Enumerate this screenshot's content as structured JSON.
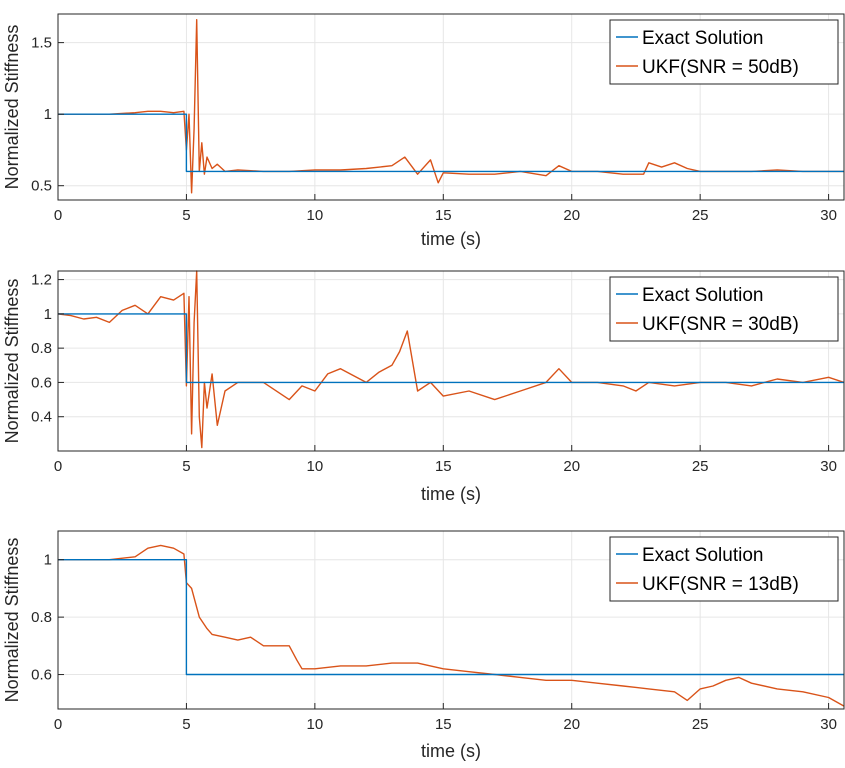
{
  "chart_data": [
    {
      "type": "line",
      "xlabel": "time (s)",
      "ylabel": "Normalized Stiffness",
      "xlim": [
        0,
        30.6
      ],
      "ylim": [
        0.4,
        1.7
      ],
      "xticks": [
        0,
        5,
        10,
        15,
        20,
        25,
        30
      ],
      "yticks": [
        0.5,
        1,
        1.5
      ],
      "xtick_labels": [
        "0",
        "5",
        "10",
        "15",
        "20",
        "25",
        "30"
      ],
      "ytick_labels": [
        "0.5",
        "1",
        "1.5"
      ],
      "legend_position": "top-right",
      "series": [
        {
          "name": "Exact Solution",
          "color": "#0072bd",
          "x": [
            0,
            5,
            5,
            30.6
          ],
          "y": [
            1,
            1,
            0.6,
            0.6
          ]
        },
        {
          "name": "UKF(SNR = 50dB)",
          "color": "#d95319",
          "x": [
            0,
            1,
            2,
            3,
            3.5,
            4,
            4.5,
            4.9,
            5.0,
            5.1,
            5.2,
            5.3,
            5.4,
            5.5,
            5.6,
            5.7,
            5.8,
            6.0,
            6.2,
            6.5,
            7.0,
            8,
            9,
            10,
            11,
            12,
            13,
            13.5,
            14,
            14.5,
            14.8,
            15,
            16,
            17,
            18,
            19,
            19.5,
            20,
            21,
            22,
            22.8,
            23,
            23.5,
            24,
            24.5,
            25,
            26,
            27,
            28,
            29,
            30,
            30.6
          ],
          "y": [
            1.0,
            1.0,
            1.0,
            1.01,
            1.02,
            1.02,
            1.01,
            1.02,
            0.75,
            1.0,
            0.45,
            0.9,
            1.66,
            0.6,
            0.8,
            0.58,
            0.7,
            0.62,
            0.65,
            0.6,
            0.61,
            0.6,
            0.6,
            0.61,
            0.61,
            0.62,
            0.64,
            0.7,
            0.58,
            0.68,
            0.52,
            0.59,
            0.58,
            0.58,
            0.6,
            0.57,
            0.64,
            0.6,
            0.6,
            0.58,
            0.58,
            0.66,
            0.63,
            0.66,
            0.62,
            0.6,
            0.6,
            0.6,
            0.61,
            0.6,
            0.6,
            0.6
          ]
        }
      ]
    },
    {
      "type": "line",
      "xlabel": "time (s)",
      "ylabel": "Normalized Stiffness",
      "xlim": [
        0,
        30.6
      ],
      "ylim": [
        0.2,
        1.25
      ],
      "xticks": [
        0,
        5,
        10,
        15,
        20,
        25,
        30
      ],
      "yticks": [
        0.4,
        0.6,
        0.8,
        1,
        1.2
      ],
      "xtick_labels": [
        "0",
        "5",
        "10",
        "15",
        "20",
        "25",
        "30"
      ],
      "ytick_labels": [
        "0.4",
        "0.6",
        "0.8",
        "1",
        "1.2"
      ],
      "legend_position": "top-right",
      "series": [
        {
          "name": "Exact Solution",
          "color": "#0072bd",
          "x": [
            0,
            5,
            5,
            30.6
          ],
          "y": [
            1,
            1,
            0.6,
            0.6
          ]
        },
        {
          "name": "UKF(SNR = 30dB)",
          "color": "#d95319",
          "x": [
            0,
            0.5,
            1,
            1.5,
            2,
            2.5,
            3,
            3.5,
            4,
            4.5,
            4.9,
            5.0,
            5.1,
            5.2,
            5.3,
            5.4,
            5.5,
            5.6,
            5.7,
            5.8,
            6.0,
            6.2,
            6.5,
            7,
            8,
            9,
            9.5,
            10,
            10.5,
            11,
            12,
            12.5,
            13,
            13.3,
            13.6,
            14,
            14.5,
            15,
            16,
            17,
            18,
            19,
            19.5,
            20,
            21,
            22,
            22.5,
            23,
            24,
            25,
            26,
            27,
            28,
            29,
            30,
            30.6
          ],
          "y": [
            1.0,
            0.99,
            0.97,
            0.98,
            0.95,
            1.02,
            1.05,
            1.0,
            1.1,
            1.08,
            1.12,
            0.58,
            1.1,
            0.3,
            0.95,
            1.25,
            0.4,
            0.22,
            0.6,
            0.45,
            0.65,
            0.35,
            0.55,
            0.6,
            0.6,
            0.5,
            0.58,
            0.55,
            0.65,
            0.68,
            0.6,
            0.66,
            0.7,
            0.78,
            0.9,
            0.55,
            0.6,
            0.52,
            0.55,
            0.5,
            0.55,
            0.6,
            0.68,
            0.6,
            0.6,
            0.58,
            0.55,
            0.6,
            0.58,
            0.6,
            0.6,
            0.58,
            0.62,
            0.6,
            0.63,
            0.6
          ]
        }
      ]
    },
    {
      "type": "line",
      "xlabel": "time (s)",
      "ylabel": "Normalized Stiffness",
      "xlim": [
        0,
        30.6
      ],
      "ylim": [
        0.48,
        1.1
      ],
      "xticks": [
        0,
        5,
        10,
        15,
        20,
        25,
        30
      ],
      "yticks": [
        0.6,
        0.8,
        1
      ],
      "xtick_labels": [
        "0",
        "5",
        "10",
        "15",
        "20",
        "25",
        "30"
      ],
      "ytick_labels": [
        "0.6",
        "0.8",
        "1"
      ],
      "legend_position": "top-right",
      "series": [
        {
          "name": "Exact Solution",
          "color": "#0072bd",
          "x": [
            0,
            5,
            5,
            30.6
          ],
          "y": [
            1,
            1,
            0.6,
            0.6
          ]
        },
        {
          "name": "UKF(SNR = 13dB)",
          "color": "#d95319",
          "x": [
            0,
            1,
            2,
            3,
            3.5,
            4,
            4.5,
            4.9,
            5.0,
            5.2,
            5.5,
            5.8,
            6.0,
            6.5,
            7,
            7.5,
            8,
            8.5,
            9,
            9.3,
            9.5,
            10,
            11,
            12,
            13,
            14,
            15,
            16,
            17,
            18,
            19,
            20,
            21,
            22,
            23,
            24,
            24.5,
            25,
            25.5,
            26,
            26.5,
            27,
            28,
            29,
            30,
            30.6
          ],
          "y": [
            1.0,
            1.0,
            1.0,
            1.01,
            1.04,
            1.05,
            1.04,
            1.02,
            0.92,
            0.9,
            0.8,
            0.76,
            0.74,
            0.73,
            0.72,
            0.73,
            0.7,
            0.7,
            0.7,
            0.65,
            0.62,
            0.62,
            0.63,
            0.63,
            0.64,
            0.64,
            0.62,
            0.61,
            0.6,
            0.59,
            0.58,
            0.58,
            0.57,
            0.56,
            0.55,
            0.54,
            0.51,
            0.55,
            0.56,
            0.58,
            0.59,
            0.57,
            0.55,
            0.54,
            0.52,
            0.49
          ]
        }
      ]
    }
  ]
}
